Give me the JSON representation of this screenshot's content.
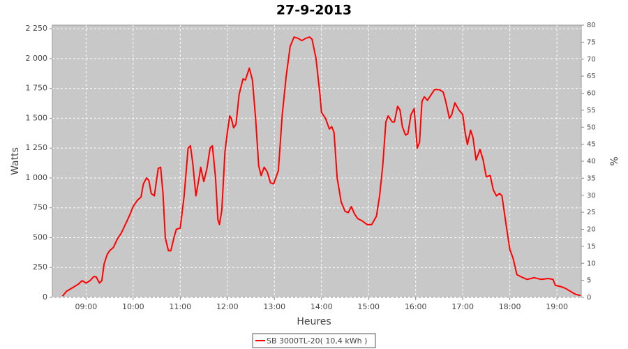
{
  "chart_data": {
    "type": "line",
    "title": "27-9-2013",
    "x_label": "Heures",
    "y_label": "Watts",
    "y2_label": "%",
    "xlim": [
      "08:17",
      "19:31"
    ],
    "xticks": [
      "09:00",
      "10:00",
      "11:00",
      "12:00",
      "13:00",
      "14:00",
      "15:00",
      "16:00",
      "17:00",
      "18:00",
      "19:00"
    ],
    "ylim": [
      0,
      2280
    ],
    "yticks": [
      0,
      250,
      500,
      750,
      {
        "value": 1000,
        "label": "1 000"
      },
      {
        "value": 1250,
        "label": "1 250"
      },
      {
        "value": 1500,
        "label": "1 500"
      },
      {
        "value": 1750,
        "label": "1 750"
      },
      {
        "value": 2000,
        "label": "2 000"
      },
      {
        "value": 2250,
        "label": "2 250"
      }
    ],
    "y2lim": [
      0,
      80
    ],
    "y2ticks": [
      0,
      5,
      10,
      15,
      20,
      25,
      30,
      35,
      40,
      45,
      50,
      55,
      60,
      65,
      70,
      75,
      80
    ],
    "grid": true,
    "legend": "bottom",
    "x": [
      "08:30",
      "08:35",
      "08:40",
      "08:45",
      "08:50",
      "08:55",
      "09:00",
      "09:05",
      "09:10",
      "09:13",
      "09:17",
      "09:20",
      "09:23",
      "09:27",
      "09:30",
      "09:35",
      "09:40",
      "09:45",
      "09:50",
      "09:55",
      "10:00",
      "10:05",
      "10:10",
      "10:13",
      "10:17",
      "10:20",
      "10:23",
      "10:27",
      "10:32",
      "10:35",
      "10:38",
      "10:41",
      "10:45",
      "10:48",
      "10:52",
      "10:55",
      "11:00",
      "11:05",
      "11:10",
      "11:13",
      "11:16",
      "11:20",
      "11:24",
      "11:26",
      "11:30",
      "11:34",
      "11:38",
      "11:41",
      "11:45",
      "11:48",
      "11:50",
      "11:53",
      "11:57",
      "12:00",
      "12:03",
      "12:05",
      "12:08",
      "12:11",
      "12:15",
      "12:20",
      "12:23",
      "12:28",
      "12:32",
      "12:36",
      "12:40",
      "12:43",
      "12:47",
      "12:51",
      "12:55",
      "12:59",
      "13:05",
      "13:10",
      "13:15",
      "13:20",
      "13:25",
      "13:30",
      "13:35",
      "13:40",
      "13:45",
      "13:48",
      "13:53",
      "13:58",
      "14:00",
      "14:05",
      "14:10",
      "14:13",
      "14:16",
      "14:20",
      "14:25",
      "14:30",
      "14:34",
      "14:38",
      "14:42",
      "14:46",
      "14:52",
      "14:58",
      "15:04",
      "15:10",
      "15:14",
      "15:18",
      "15:22",
      "15:25",
      "15:30",
      "15:33",
      "15:37",
      "15:40",
      "15:43",
      "15:47",
      "15:50",
      "15:54",
      "15:58",
      "16:02",
      "16:05",
      "16:08",
      "16:11",
      "16:15",
      "16:20",
      "16:24",
      "16:30",
      "16:35",
      "16:38",
      "16:43",
      "16:46",
      "16:50",
      "16:55",
      "17:00",
      "17:03",
      "17:06",
      "17:10",
      "17:13",
      "17:17",
      "17:22",
      "17:26",
      "17:30",
      "17:35",
      "17:39",
      "17:43",
      "17:47",
      "17:50",
      "17:55",
      "18:00",
      "18:04",
      "18:09",
      "18:15",
      "18:22",
      "18:31",
      "18:40",
      "18:49",
      "18:55",
      "18:58",
      "19:05",
      "19:11",
      "19:20",
      "19:24",
      "19:30"
    ],
    "series": [
      {
        "name": "SB 3000TL-20( 10,4 kWh )",
        "color": "#ff0000",
        "values": [
          10,
          50,
          70,
          90,
          110,
          140,
          120,
          140,
          175,
          170,
          120,
          140,
          280,
          360,
          390,
          420,
          490,
          540,
          610,
          680,
          760,
          810,
          840,
          950,
          1000,
          980,
          870,
          850,
          1080,
          1090,
          870,
          500,
          390,
          390,
          500,
          570,
          580,
          850,
          1250,
          1270,
          1120,
          850,
          1000,
          1090,
          970,
          1080,
          1250,
          1270,
          1000,
          650,
          610,
          730,
          1220,
          1380,
          1520,
          1500,
          1420,
          1450,
          1700,
          1830,
          1820,
          1920,
          1820,
          1500,
          1100,
          1020,
          1090,
          1050,
          960,
          950,
          1060,
          1530,
          1850,
          2100,
          2180,
          2170,
          2150,
          2170,
          2180,
          2160,
          2000,
          1700,
          1550,
          1500,
          1410,
          1430,
          1380,
          1000,
          800,
          720,
          710,
          760,
          700,
          660,
          640,
          610,
          610,
          680,
          850,
          1100,
          1470,
          1520,
          1470,
          1470,
          1600,
          1570,
          1430,
          1360,
          1370,
          1530,
          1580,
          1250,
          1300,
          1640,
          1680,
          1650,
          1700,
          1740,
          1740,
          1720,
          1650,
          1500,
          1530,
          1630,
          1570,
          1530,
          1380,
          1280,
          1400,
          1340,
          1150,
          1240,
          1150,
          1010,
          1020,
          900,
          850,
          870,
          850,
          620,
          400,
          330,
          190,
          170,
          150,
          165,
          150,
          158,
          150,
          100,
          90,
          75,
          40,
          25,
          15
        ]
      }
    ]
  }
}
